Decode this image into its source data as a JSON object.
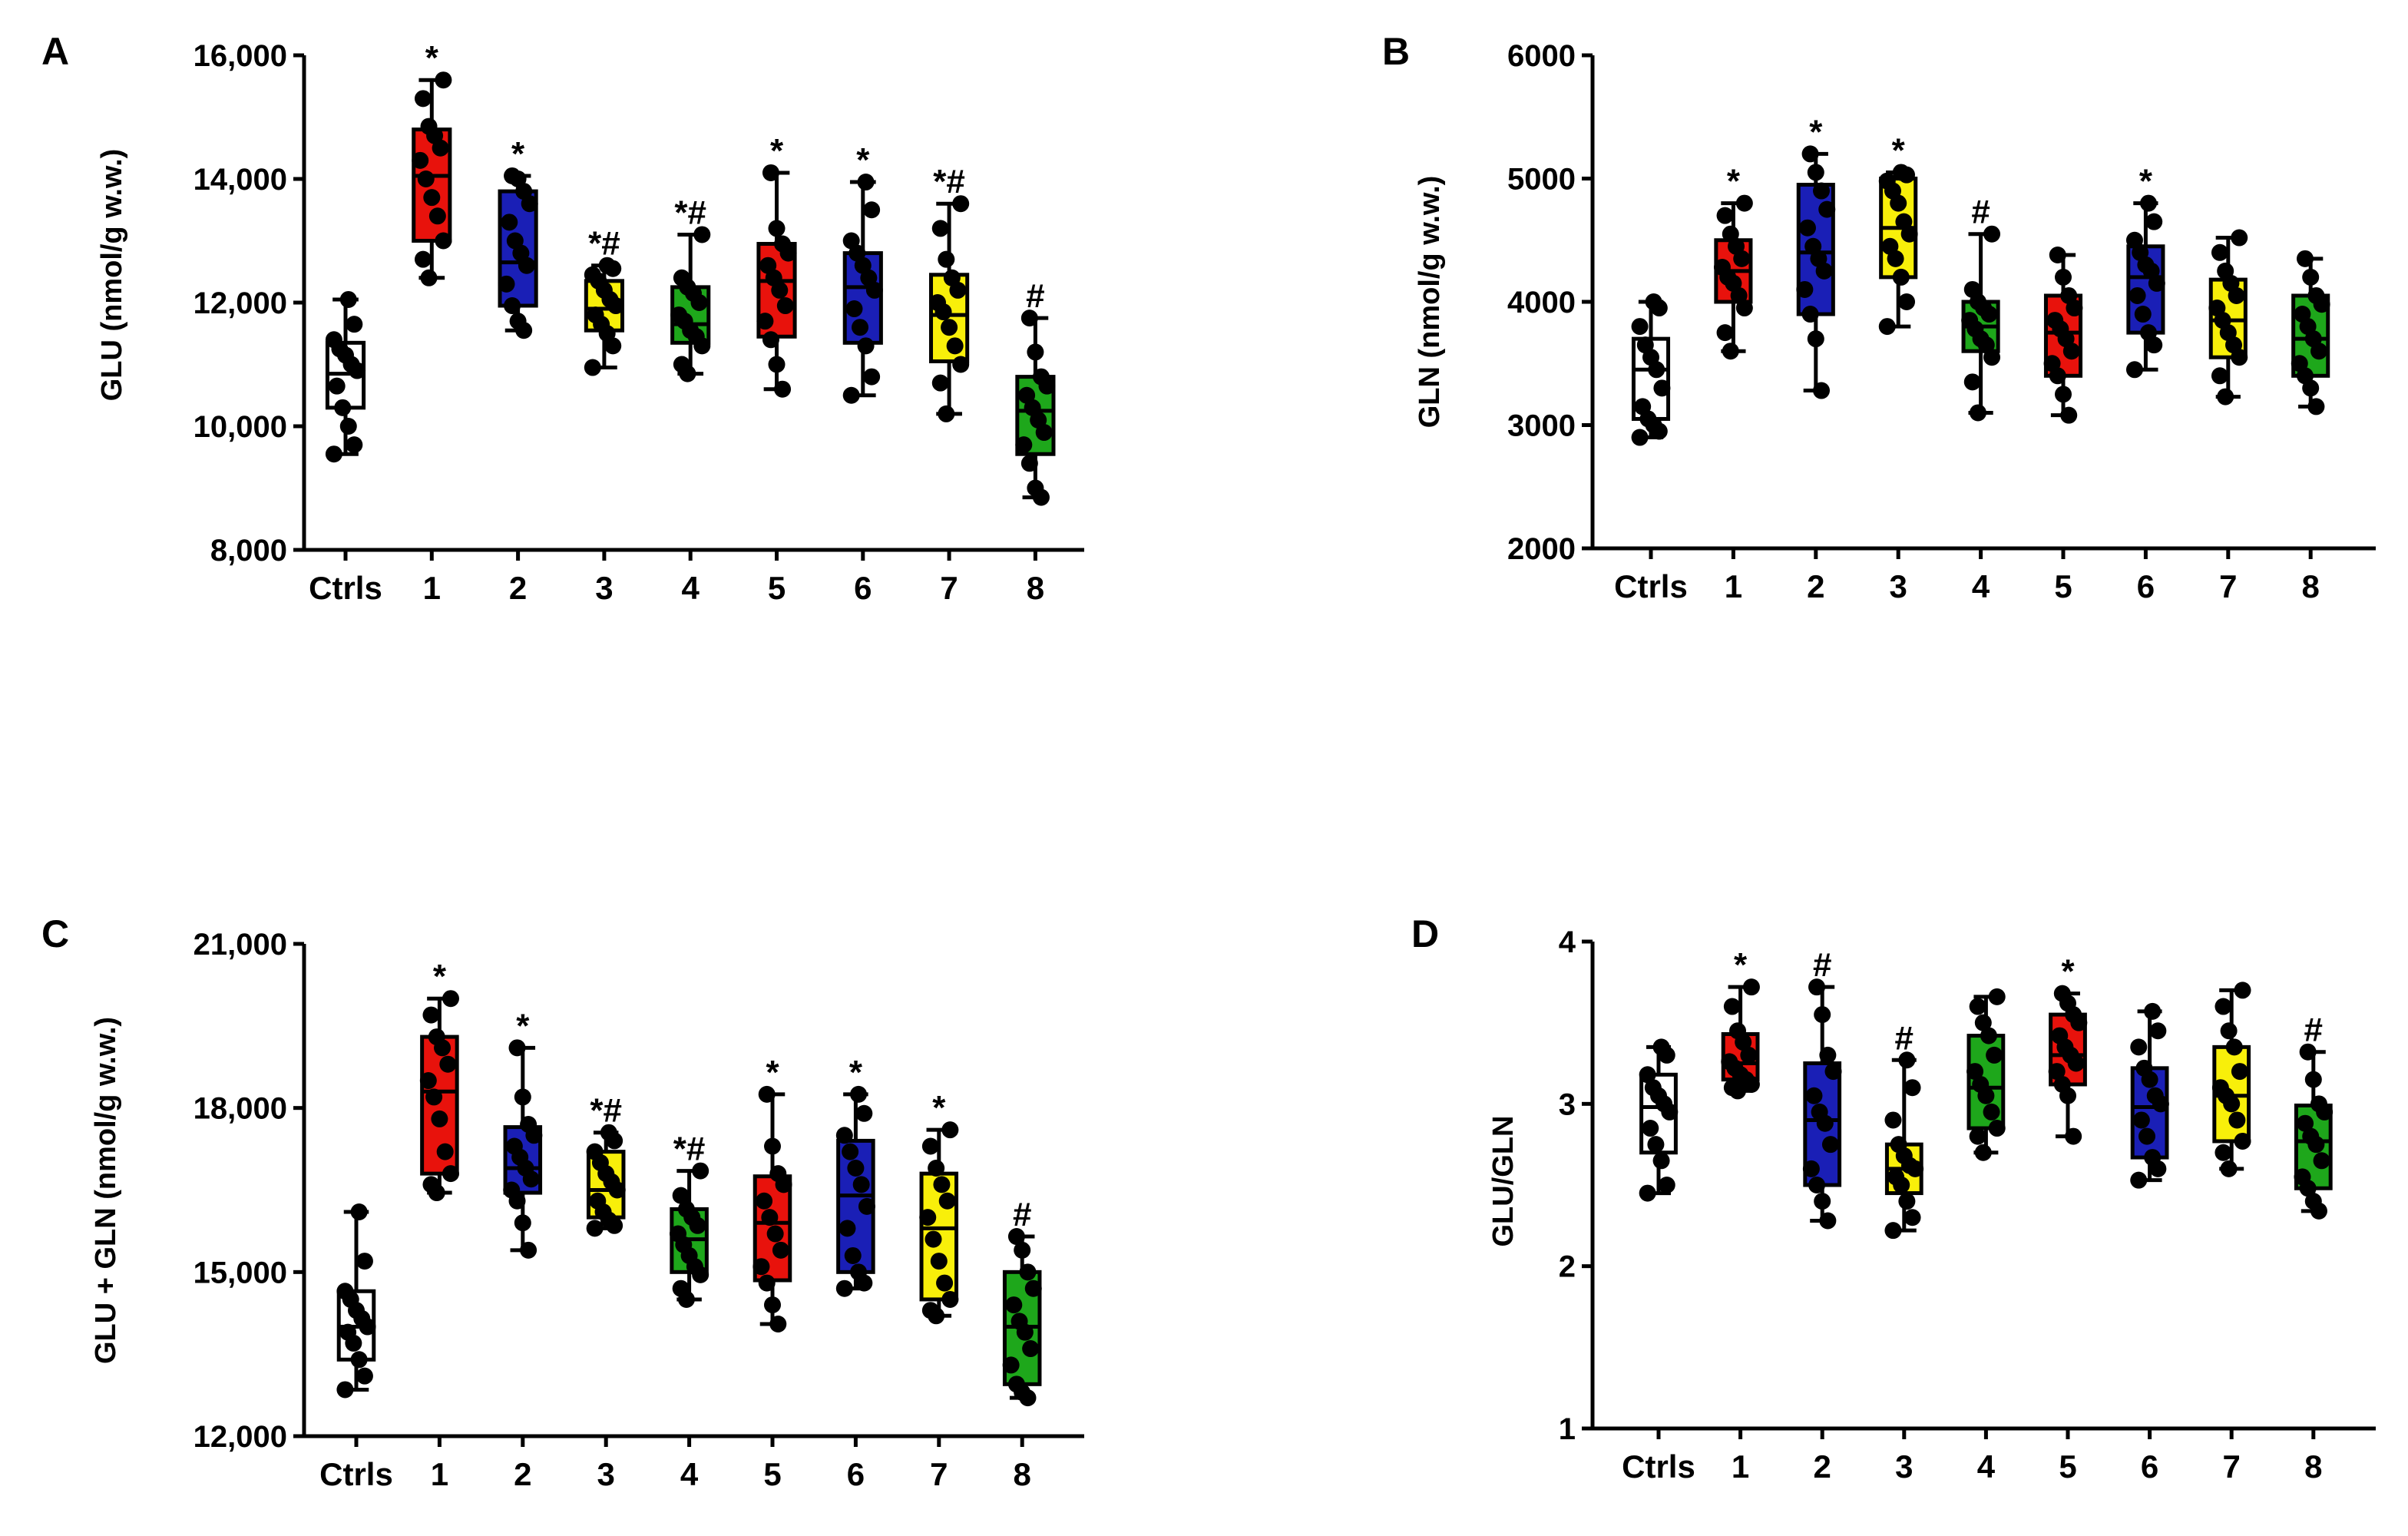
{
  "colors": {
    "Ctrls": "#ffffff",
    "1": "#e8120c",
    "2": "#1a1fb6",
    "3": "#f8ef0a",
    "4": "#1ea71b",
    "5": "#e8120c",
    "6": "#1a1fb6",
    "7": "#f8ef0a",
    "8": "#1ea71b",
    "axis": "#000000",
    "points": "#000000"
  },
  "chart_data": [
    {
      "panel": "A",
      "type": "box",
      "ylabel": "GLU (nmol/g w.w.)",
      "ylim": [
        8000,
        16000
      ],
      "yticks": [
        8000,
        10000,
        12000,
        14000,
        16000
      ],
      "ytick_labels": [
        "8,000",
        "10,000",
        "12,000",
        "14,000",
        "16,000"
      ],
      "categories": [
        "Ctrls",
        "1",
        "2",
        "3",
        "4",
        "5",
        "6",
        "7",
        "8"
      ],
      "significance": [
        "",
        "*",
        "*",
        "*#",
        "*#",
        "*",
        "*",
        "*#",
        "#"
      ],
      "boxes": [
        {
          "min": 9550,
          "q1": 10300,
          "median": 10850,
          "q3": 11350,
          "max": 12050
        },
        {
          "min": 12400,
          "q1": 13000,
          "median": 14050,
          "q3": 14800,
          "max": 15600
        },
        {
          "min": 11550,
          "q1": 11950,
          "median": 12650,
          "q3": 13800,
          "max": 14050
        },
        {
          "min": 10950,
          "q1": 11550,
          "median": 11900,
          "q3": 12350,
          "max": 12600
        },
        {
          "min": 10850,
          "q1": 11350,
          "median": 11650,
          "q3": 12250,
          "max": 13100
        },
        {
          "min": 10600,
          "q1": 11450,
          "median": 12350,
          "q3": 12950,
          "max": 14100
        },
        {
          "min": 10500,
          "q1": 11350,
          "median": 12250,
          "q3": 12800,
          "max": 13950
        },
        {
          "min": 10200,
          "q1": 11050,
          "median": 11800,
          "q3": 12450,
          "max": 13600
        },
        {
          "min": 8850,
          "q1": 9550,
          "median": 10250,
          "q3": 10800,
          "max": 11750
        }
      ],
      "points": [
        [
          9550,
          9700,
          10000,
          10300,
          10650,
          10900,
          11000,
          11150,
          11250,
          11400,
          11650,
          12050
        ],
        [
          12400,
          12700,
          13000,
          13400,
          13700,
          14000,
          14300,
          14500,
          14700,
          14850,
          15300,
          15600
        ],
        [
          11550,
          11700,
          11950,
          12300,
          12600,
          12800,
          13000,
          13300,
          13600,
          13800,
          14000,
          14050
        ],
        [
          10950,
          11300,
          11500,
          11650,
          11800,
          11950,
          12050,
          12200,
          12350,
          12450,
          12550,
          12600
        ],
        [
          10850,
          11000,
          11300,
          11450,
          11550,
          11700,
          11800,
          12000,
          12150,
          12250,
          12400,
          13100
        ],
        [
          10600,
          11000,
          11400,
          11700,
          11950,
          12200,
          12400,
          12600,
          12800,
          12950,
          13200,
          14100
        ],
        [
          10500,
          10800,
          11300,
          11600,
          11900,
          12200,
          12400,
          12600,
          12800,
          13000,
          13500,
          13950
        ],
        [
          10200,
          10700,
          11000,
          11300,
          11600,
          11850,
          12000,
          12200,
          12400,
          12700,
          13200,
          13600
        ],
        [
          8850,
          9000,
          9400,
          9700,
          9900,
          10100,
          10300,
          10500,
          10650,
          10800,
          11200,
          11750
        ]
      ]
    },
    {
      "panel": "B",
      "type": "box",
      "ylabel": "GLN (nmol/g w.w.)",
      "ylim": [
        2000,
        6000
      ],
      "yticks": [
        2000,
        3000,
        4000,
        5000,
        6000
      ],
      "ytick_labels": [
        "2000",
        "3000",
        "4000",
        "5000",
        "6000"
      ],
      "categories": [
        "Ctrls",
        "1",
        "2",
        "3",
        "4",
        "5",
        "6",
        "7",
        "8"
      ],
      "significance": [
        "",
        "*",
        "*",
        "*",
        "#",
        "",
        "*",
        "",
        ""
      ],
      "boxes": [
        {
          "min": 2900,
          "q1": 3050,
          "median": 3450,
          "q3": 3700,
          "max": 4000
        },
        {
          "min": 3600,
          "q1": 4000,
          "median": 4250,
          "q3": 4500,
          "max": 4800
        },
        {
          "min": 3280,
          "q1": 3900,
          "median": 4400,
          "q3": 4950,
          "max": 5200
        },
        {
          "min": 3800,
          "q1": 4200,
          "median": 4600,
          "q3": 5000,
          "max": 5050
        },
        {
          "min": 3100,
          "q1": 3600,
          "median": 3800,
          "q3": 4000,
          "max": 4550
        },
        {
          "min": 3080,
          "q1": 3400,
          "median": 3750,
          "q3": 4050,
          "max": 4380
        },
        {
          "min": 3450,
          "q1": 3750,
          "median": 4200,
          "q3": 4450,
          "max": 4800
        },
        {
          "min": 3230,
          "q1": 3550,
          "median": 3850,
          "q3": 4180,
          "max": 4520
        },
        {
          "min": 3150,
          "q1": 3400,
          "median": 3700,
          "q3": 4050,
          "max": 4350
        }
      ],
      "points": [
        [
          2900,
          2950,
          3000,
          3050,
          3150,
          3300,
          3450,
          3550,
          3650,
          3800,
          3950,
          4000
        ],
        [
          3600,
          3750,
          3950,
          4050,
          4150,
          4200,
          4280,
          4350,
          4450,
          4550,
          4700,
          4800
        ],
        [
          3280,
          3700,
          3900,
          4100,
          4250,
          4350,
          4450,
          4600,
          4750,
          4900,
          5050,
          5200
        ],
        [
          3800,
          4000,
          4200,
          4350,
          4450,
          4550,
          4650,
          4800,
          4900,
          4980,
          5030,
          5050
        ],
        [
          3100,
          3350,
          3550,
          3650,
          3700,
          3780,
          3850,
          3900,
          3950,
          4000,
          4100,
          4550
        ],
        [
          3080,
          3250,
          3400,
          3500,
          3600,
          3700,
          3780,
          3850,
          3950,
          4050,
          4200,
          4380
        ],
        [
          3450,
          3650,
          3750,
          3900,
          4050,
          4150,
          4250,
          4300,
          4400,
          4500,
          4650,
          4800
        ],
        [
          3230,
          3400,
          3550,
          3650,
          3750,
          3850,
          3950,
          4050,
          4150,
          4250,
          4400,
          4520
        ],
        [
          3150,
          3300,
          3400,
          3500,
          3600,
          3700,
          3800,
          3900,
          3980,
          4050,
          4200,
          4350
        ]
      ]
    },
    {
      "panel": "C",
      "type": "box",
      "ylabel": "GLU + GLN (nmol/g w.w.)",
      "ylim": [
        12000,
        21000
      ],
      "yticks": [
        12000,
        15000,
        18000,
        21000
      ],
      "ytick_labels": [
        "12,000",
        "15,000",
        "18,000",
        "21,000"
      ],
      "categories": [
        "Ctrls",
        "1",
        "2",
        "3",
        "4",
        "5",
        "6",
        "7",
        "8"
      ],
      "significance": [
        "",
        "*",
        "*",
        "*#",
        "*#",
        "*",
        "*",
        "*",
        "#"
      ],
      "boxes": [
        {
          "min": 12850,
          "q1": 13400,
          "median": 14000,
          "q3": 14650,
          "max": 16100
        },
        {
          "min": 16450,
          "q1": 16800,
          "median": 18300,
          "q3": 19300,
          "max": 20000
        },
        {
          "min": 15400,
          "q1": 16450,
          "median": 16900,
          "q3": 17650,
          "max": 19100
        },
        {
          "min": 15800,
          "q1": 16000,
          "median": 16500,
          "q3": 17200,
          "max": 17550
        },
        {
          "min": 14500,
          "q1": 15000,
          "median": 15600,
          "q3": 16150,
          "max": 16850
        },
        {
          "min": 14050,
          "q1": 14850,
          "median": 15900,
          "q3": 16750,
          "max": 18250
        },
        {
          "min": 14700,
          "q1": 15000,
          "median": 16400,
          "q3": 17400,
          "max": 18250
        },
        {
          "min": 14200,
          "q1": 14500,
          "median": 15800,
          "q3": 16800,
          "max": 17600
        },
        {
          "min": 12700,
          "q1": 12950,
          "median": 14000,
          "q3": 15000,
          "max": 15650
        }
      ],
      "points": [
        [
          12850,
          13100,
          13400,
          13700,
          13900,
          14000,
          14150,
          14300,
          14500,
          14650,
          15200,
          16100
        ],
        [
          16450,
          16600,
          16800,
          17200,
          17800,
          18200,
          18500,
          18800,
          19100,
          19300,
          19700,
          20000
        ],
        [
          15400,
          15900,
          16300,
          16500,
          16700,
          16900,
          17100,
          17300,
          17500,
          17700,
          18200,
          19100
        ],
        [
          15800,
          15850,
          15950,
          16100,
          16300,
          16500,
          16650,
          16800,
          17000,
          17200,
          17400,
          17550
        ],
        [
          14500,
          14700,
          14950,
          15100,
          15300,
          15500,
          15700,
          15850,
          16000,
          16150,
          16400,
          16850
        ],
        [
          14050,
          14400,
          14800,
          15100,
          15400,
          15700,
          16000,
          16300,
          16600,
          16800,
          17300,
          18250
        ],
        [
          14700,
          14800,
          15000,
          15300,
          15800,
          16200,
          16600,
          16900,
          17200,
          17500,
          17900,
          18250
        ],
        [
          14200,
          14300,
          14500,
          14800,
          15200,
          15600,
          16000,
          16300,
          16600,
          16900,
          17300,
          17600
        ],
        [
          12700,
          12800,
          12950,
          13300,
          13600,
          13900,
          14100,
          14400,
          14700,
          15000,
          15400,
          15650
        ]
      ]
    },
    {
      "panel": "D",
      "type": "box",
      "ylabel": "GLU/GLN",
      "ylim": [
        1,
        4
      ],
      "yticks": [
        1,
        2,
        3,
        4
      ],
      "ytick_labels": [
        "1",
        "2",
        "3",
        "4"
      ],
      "categories": [
        "Ctrls",
        "1",
        "2",
        "3",
        "4",
        "5",
        "6",
        "7",
        "8"
      ],
      "significance": [
        "",
        "*",
        "#",
        "#",
        "",
        "*",
        "",
        "",
        "#"
      ],
      "boxes": [
        {
          "min": 2.45,
          "q1": 2.7,
          "median": 2.98,
          "q3": 3.18,
          "max": 3.35
        },
        {
          "min": 3.08,
          "q1": 3.15,
          "median": 3.25,
          "q3": 3.43,
          "max": 3.72
        },
        {
          "min": 2.28,
          "q1": 2.5,
          "median": 2.9,
          "q3": 3.25,
          "max": 3.72
        },
        {
          "min": 2.22,
          "q1": 2.45,
          "median": 2.6,
          "q3": 2.75,
          "max": 3.27
        },
        {
          "min": 2.7,
          "q1": 2.85,
          "median": 3.1,
          "q3": 3.42,
          "max": 3.66
        },
        {
          "min": 2.8,
          "q1": 3.12,
          "median": 3.3,
          "q3": 3.55,
          "max": 3.68
        },
        {
          "min": 2.53,
          "q1": 2.67,
          "median": 2.98,
          "q3": 3.22,
          "max": 3.57
        },
        {
          "min": 2.6,
          "q1": 2.77,
          "median": 3.05,
          "q3": 3.35,
          "max": 3.7
        },
        {
          "min": 2.34,
          "q1": 2.48,
          "median": 2.77,
          "q3": 2.99,
          "max": 3.32
        }
      ],
      "points": [
        [
          2.45,
          2.5,
          2.65,
          2.75,
          2.85,
          2.95,
          3.0,
          3.05,
          3.1,
          3.18,
          3.3,
          3.35
        ],
        [
          3.08,
          3.1,
          3.12,
          3.15,
          3.18,
          3.22,
          3.26,
          3.3,
          3.38,
          3.45,
          3.6,
          3.72
        ],
        [
          2.28,
          2.4,
          2.5,
          2.6,
          2.75,
          2.88,
          2.95,
          3.05,
          3.2,
          3.3,
          3.55,
          3.72
        ],
        [
          2.22,
          2.3,
          2.4,
          2.5,
          2.55,
          2.6,
          2.62,
          2.68,
          2.75,
          2.9,
          3.1,
          3.27
        ],
        [
          2.7,
          2.8,
          2.85,
          2.95,
          3.05,
          3.12,
          3.2,
          3.3,
          3.42,
          3.5,
          3.6,
          3.66
        ],
        [
          2.8,
          3.05,
          3.12,
          3.2,
          3.25,
          3.3,
          3.35,
          3.42,
          3.5,
          3.55,
          3.62,
          3.68
        ],
        [
          2.53,
          2.6,
          2.67,
          2.8,
          2.9,
          3.0,
          3.05,
          3.15,
          3.22,
          3.35,
          3.45,
          3.57
        ],
        [
          2.6,
          2.7,
          2.77,
          2.9,
          3.0,
          3.05,
          3.1,
          3.2,
          3.35,
          3.45,
          3.6,
          3.7
        ],
        [
          2.34,
          2.4,
          2.48,
          2.55,
          2.65,
          2.75,
          2.8,
          2.88,
          2.95,
          3.0,
          3.15,
          3.32
        ]
      ]
    }
  ]
}
